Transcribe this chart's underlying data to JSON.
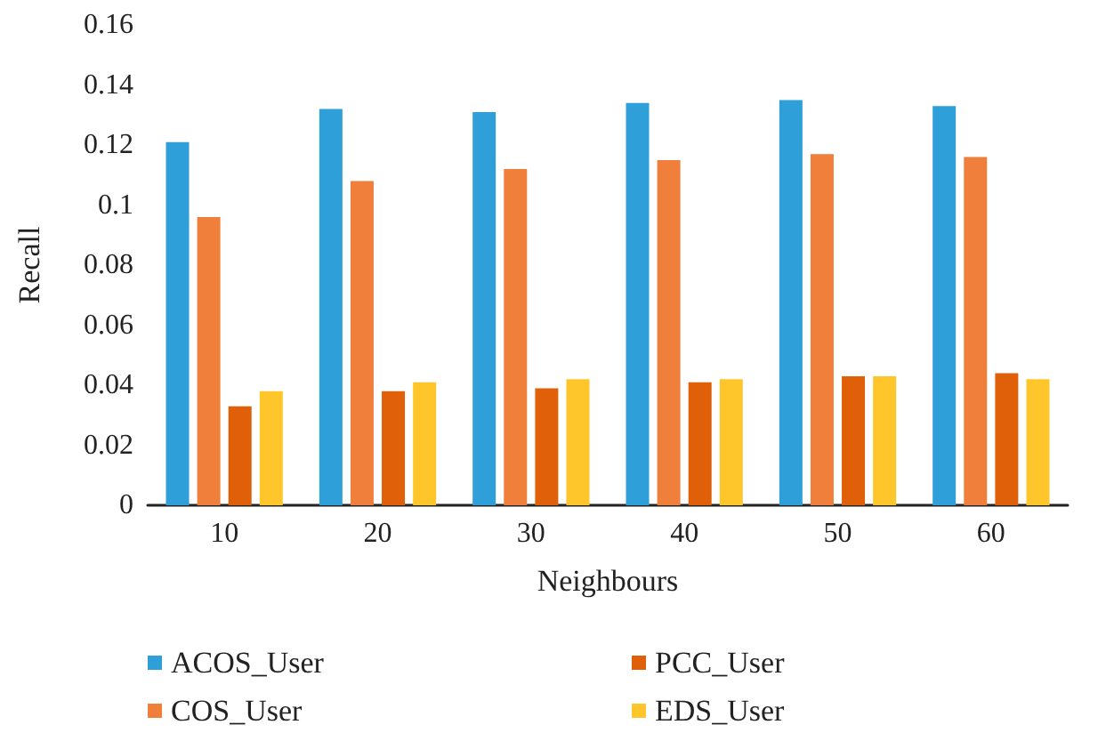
{
  "chart_data": {
    "type": "bar",
    "xlabel": "Neighbours",
    "ylabel": "Recall",
    "categories": [
      "10",
      "20",
      "30",
      "40",
      "50",
      "60"
    ],
    "series": [
      {
        "name": "ACOS_User",
        "color": "#2e9fd8",
        "values": [
          0.121,
          0.132,
          0.131,
          0.134,
          0.135,
          0.133
        ]
      },
      {
        "name": "COS_User",
        "color": "#f07f3c",
        "values": [
          0.096,
          0.108,
          0.112,
          0.115,
          0.117,
          0.116
        ]
      },
      {
        "name": "PCC_User",
        "color": "#e0600a",
        "values": [
          0.033,
          0.038,
          0.039,
          0.041,
          0.043,
          0.044
        ]
      },
      {
        "name": "EDS_User",
        "color": "#ffc62b",
        "values": [
          0.038,
          0.041,
          0.042,
          0.042,
          0.043,
          0.042
        ]
      }
    ],
    "ylim": [
      0,
      0.16
    ],
    "yticks": [
      0,
      0.02,
      0.04,
      0.06,
      0.08,
      0.1,
      0.12,
      0.14,
      0.16
    ],
    "grid": false,
    "legend": "bottom"
  }
}
